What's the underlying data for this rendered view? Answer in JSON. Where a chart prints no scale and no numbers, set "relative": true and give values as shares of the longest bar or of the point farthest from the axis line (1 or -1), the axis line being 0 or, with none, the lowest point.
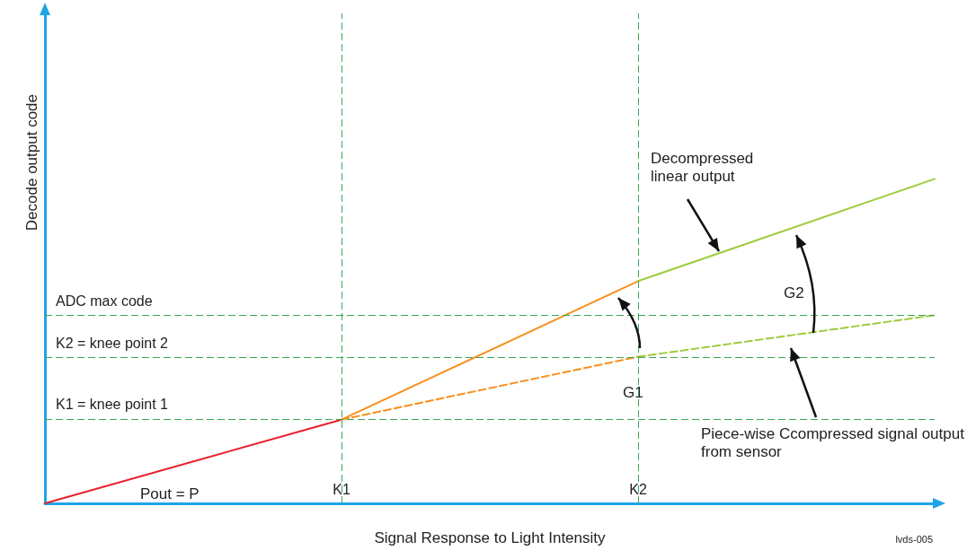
{
  "chart_data": {
    "type": "line",
    "relative": true,
    "xlabel": "Signal Response to Light Intensity",
    "ylabel": "Decode output code",
    "categories": [
      null,
      "K1",
      "K2",
      null
    ],
    "tick_labels": "x",
    "marker": "none",
    "series": [
      {
        "color": "#e8202a",
        "line_style": "solid",
        "values": [
          0,
          0.258,
          null,
          null
        ]
      },
      {
        "color": "#f7901e",
        "line_style": "solid",
        "values": [
          null,
          0.258,
          0.685,
          null
        ]
      },
      {
        "color": "#9ecb3c",
        "line_style": "solid",
        "values": [
          null,
          null,
          0.685,
          1
        ]
      },
      {
        "color": "#f7901e",
        "line_style": "dashed",
        "values": [
          null,
          0.258,
          0.452,
          null
        ]
      },
      {
        "color": "#9ecb3c",
        "line_style": "dashed",
        "values": [
          null,
          null,
          0.452,
          0.58
        ]
      }
    ],
    "ref_lines": [
      {
        "axis": "y",
        "value": 0.58,
        "label": "ADC max code",
        "color": "#3aa655",
        "line_style": "dashed"
      },
      {
        "axis": "y",
        "value": 0.452,
        "label": "K2 = knee point 2",
        "color": "#3aa655",
        "line_style": "dashed"
      },
      {
        "axis": "y",
        "value": 0.258,
        "label": "K1 = knee point 1",
        "color": "#3aa655",
        "line_style": "dashed"
      },
      {
        "axis": "x",
        "value": "K1",
        "color": "#3aa655",
        "line_style": "dashed"
      },
      {
        "axis": "x",
        "value": "K2",
        "color": "#3aa655",
        "line_style": "dashed"
      }
    ],
    "annotations": [
      "Decompressed linear output",
      "Piece-wise Ccompressed signal output from sensor",
      "G1",
      "G2",
      "Pout = P",
      "lvds-005"
    ]
  }
}
